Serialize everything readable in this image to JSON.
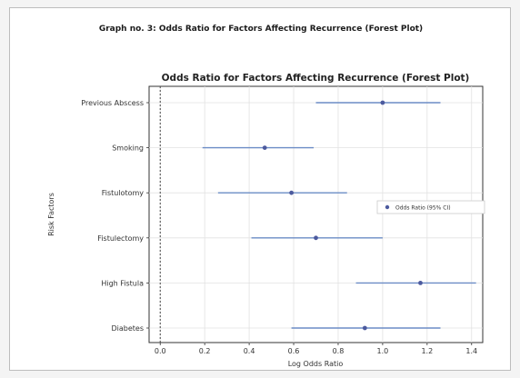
{
  "caption": "Graph no. 3: Odds Ratio for Factors Affecting Recurrence (Forest Plot)",
  "chart_data": {
    "type": "scatter",
    "title": "Odds Ratio for Factors Affecting Recurrence (Forest Plot)",
    "xlabel": "Log Odds Ratio",
    "ylabel": "Risk Factors",
    "xlim": [
      -0.05,
      1.45
    ],
    "xticks": [
      "0.0",
      "0.2",
      "0.4",
      "0.6",
      "0.8",
      "1.0",
      "1.2",
      "1.4"
    ],
    "grid": true,
    "reference_line_x": 0,
    "legend": {
      "label": "Odds Ratio (95% CI)",
      "placement": "center-right"
    },
    "marker_color": "#4c5a9e",
    "ci_color": "#6b8cc6",
    "factors": [
      {
        "label": "Previous Abscess",
        "estimate": 1.0,
        "ci": [
          0.7,
          1.26
        ]
      },
      {
        "label": "Smoking",
        "estimate": 0.47,
        "ci": [
          0.19,
          0.69
        ]
      },
      {
        "label": "Fistulotomy",
        "estimate": 0.59,
        "ci": [
          0.26,
          0.84
        ]
      },
      {
        "label": "Fistulectomy",
        "estimate": 0.7,
        "ci": [
          0.41,
          1.0
        ]
      },
      {
        "label": "High Fistula",
        "estimate": 1.17,
        "ci": [
          0.88,
          1.42
        ]
      },
      {
        "label": "Diabetes",
        "estimate": 0.92,
        "ci": [
          0.59,
          1.26
        ]
      }
    ]
  }
}
